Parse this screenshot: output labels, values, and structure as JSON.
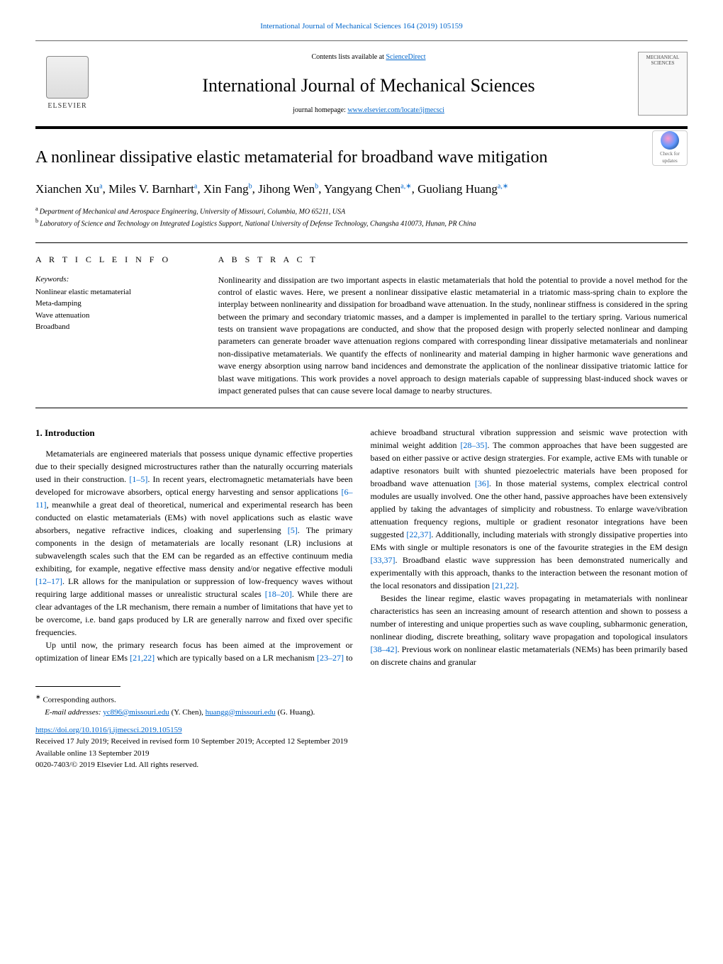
{
  "header": {
    "journal_reference": "International Journal of Mechanical Sciences 164 (2019) 105159",
    "contents_prefix": "Contents lists available at ",
    "contents_link": "ScienceDirect",
    "journal_name": "International Journal of Mechanical Sciences",
    "homepage_prefix": "journal homepage: ",
    "homepage_link": "www.elsevier.com/locate/ijmecsci",
    "publisher": "ELSEVIER",
    "cover_masthead": "MECHANICAL SCIENCES"
  },
  "article": {
    "title": "A nonlinear dissipative elastic metamaterial for broadband wave mitigation",
    "authors_html": "Xianchen Xu<sup>a</sup>, Miles V. Barnhart<sup>a</sup>, Xin Fang<sup>b</sup>, Jihong Wen<sup>b</sup>, Yangyang Chen<sup>a,∗</sup>, Guoliang Huang<sup>a,∗</sup>",
    "affiliations": {
      "a": "Department of Mechanical and Aerospace Engineering, University of Missouri, Columbia, MO 65211, USA",
      "b": "Laboratory of Science and Technology on Integrated Logistics Support, National University of Defense Technology, Changsha 410073, Hunan, PR China"
    },
    "check_updates": "Check for updates"
  },
  "info": {
    "label": "A R T I C L E   I N F O",
    "keywords_label": "Keywords:",
    "keywords": [
      "Nonlinear elastic metamaterial",
      "Meta-damping",
      "Wave attenuation",
      "Broadband"
    ]
  },
  "abstract": {
    "label": "A B S T R A C T",
    "text": "Nonlinearity and dissipation are two important aspects in elastic metamaterials that hold the potential to provide a novel method for the control of elastic waves. Here, we present a nonlinear dissipative elastic metamaterial in a triatomic mass-spring chain to explore the interplay between nonlinearity and dissipation for broadband wave attenuation. In the study, nonlinear stiffness is considered in the spring between the primary and secondary triatomic masses, and a damper is implemented in parallel to the tertiary spring. Various numerical tests on transient wave propagations are conducted, and show that the proposed design with properly selected nonlinear and damping parameters can generate broader wave attenuation regions compared with corresponding linear dissipative metamaterials and nonlinear non-dissipative metamaterials. We quantify the effects of nonlinearity and material damping in higher harmonic wave generations and wave energy absorption using narrow band incidences and demonstrate the application of the nonlinear dissipative triatomic lattice for blast wave mitigations. This work provides a novel approach to design materials capable of suppressing blast-induced shock waves or impact generated pulses that can cause severe local damage to nearby structures."
  },
  "body": {
    "section1_heading": "1. Introduction",
    "para1": "Metamaterials are engineered materials that possess unique dynamic effective properties due to their specially designed microstructures rather than the naturally occurring materials used in their construction. <span class=\"cite\">[1–5]</span>. In recent years, electromagnetic metamaterials have been developed for microwave absorbers, optical energy harvesting and sensor applications <span class=\"cite\">[6–11]</span>, meanwhile a great deal of theoretical, numerical and experimental research has been conducted on elastic metamaterials (EMs) with novel applications such as elastic wave absorbers, negative refractive indices, cloaking and superlensing <span class=\"cite\">[5]</span>. The primary components in the design of metamaterials are locally resonant (LR) inclusions at subwavelength scales such that the EM can be regarded as an effective continuum media exhibiting, for example, negative effective mass density and/or negative effective moduli <span class=\"cite\">[12–17]</span>. LR allows for the manipulation or suppression of low-frequency waves without requiring large additional masses or unrealistic structural scales <span class=\"cite\">[18–20]</span>. While there are clear advantages of the LR mechanism, there remain a number of limitations that have yet to be overcome, i.e. band gaps produced by LR are generally narrow and fixed over specific frequencies.",
    "para2": "Up until now, the primary research focus has been aimed at the improvement or optimization of linear EMs <span class=\"cite\">[21,22]</span> which are typically based on a LR mechanism <span class=\"cite\">[23–27]</span> to achieve broadband structural vibration suppression and seismic wave protection with minimal weight addition <span class=\"cite\">[28–35]</span>. The common approaches that have been suggested are based on either passive or active design stratergies. For example, active EMs with tunable or adaptive resonators built with shunted piezoelectric materials have been proposed for broadband wave attenuation <span class=\"cite\">[36]</span>. In those material systems, complex electrical control modules are usually involved. One the other hand, passive approaches have been extensively applied by taking the advantages of simplicity and robustness. To enlarge wave/vibration attenuation frequency regions, multiple or gradient resonator integrations have been suggested <span class=\"cite\">[22,37]</span>. Additionally, including materials with strongly dissipative properties into EMs with single or multiple resonators is one of the favourite strategies in the EM design <span class=\"cite\">[33,37]</span>. Broadband elastic wave suppression has been demonstrated numerically and experimentally with this approach, thanks to the interaction between the resonant motion of the local resonators and dissipation <span class=\"cite\">[21,22]</span>.",
    "para3": "Besides the linear regime, elastic waves propagating in metamaterials with nonlinear characteristics has seen an increasing amount of research attention and shown to possess a number of interesting and unique properties such as wave coupling, subharmonic generation, nonlinear dioding, discrete breathing, solitary wave propagation and topological insulators <span class=\"cite\">[38–42]</span>. Previous work on nonlinear elastic metamaterials (NEMs) has been primarily based on discrete chains and granular"
  },
  "footer": {
    "corresponding": "Corresponding authors.",
    "email_label": "E-mail addresses: ",
    "email1": "yc896@missouri.edu",
    "email1_name": " (Y. Chen), ",
    "email2": "huangg@missouri.edu",
    "email2_name": " (G. Huang).",
    "doi": "https://doi.org/10.1016/j.ijmecsci.2019.105159",
    "history": "Received 17 July 2019; Received in revised form 10 September 2019; Accepted 12 September 2019",
    "available": "Available online 13 September 2019",
    "copyright": "0020-7403/© 2019 Elsevier Ltd. All rights reserved."
  }
}
